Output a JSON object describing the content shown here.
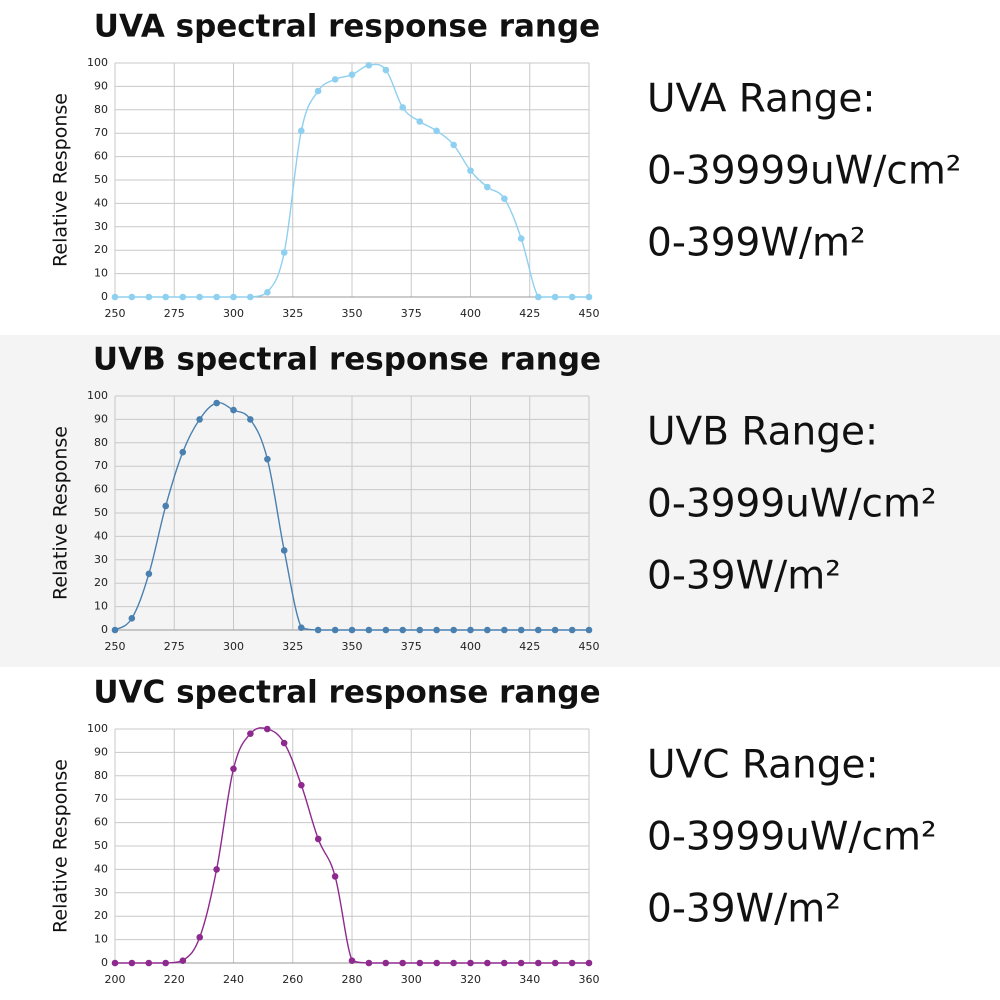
{
  "chart_data": [
    {
      "type": "line",
      "title": "UVA spectral response range",
      "y_label": "Relative Response",
      "color": "#8fd0f0",
      "grid": true,
      "x": [
        250,
        257.1,
        264.3,
        271.4,
        278.6,
        285.7,
        292.9,
        300,
        307.1,
        314.3,
        321.4,
        328.6,
        335.7,
        342.9,
        350,
        357.1,
        364.3,
        371.4,
        378.6,
        385.7,
        392.9,
        400,
        407.1,
        414.3,
        421.4,
        428.6,
        435.7,
        442.9,
        450
      ],
      "values": [
        0,
        0,
        0,
        0,
        0,
        0,
        0,
        0,
        0,
        2,
        19,
        71,
        88,
        93,
        95,
        99,
        97,
        81,
        75,
        71,
        65,
        54,
        47,
        42,
        25,
        0,
        0,
        0,
        0
      ],
      "xlim": [
        250,
        450
      ],
      "xticks": [
        250,
        275,
        300,
        325,
        350,
        375,
        400,
        425,
        450
      ],
      "ylim": [
        0,
        100
      ],
      "yticks": [
        0,
        10,
        20,
        30,
        40,
        50,
        60,
        70,
        80,
        90,
        100
      ],
      "annotations": [
        "UVA Range:",
        "0-39999uW/cm²",
        "0-399W/m²"
      ]
    },
    {
      "type": "line",
      "title": "UVB spectral response range",
      "y_label": "Relative Response",
      "color": "#4a80b0",
      "grid": true,
      "x": [
        250,
        257.1,
        264.3,
        271.4,
        278.6,
        285.7,
        292.9,
        300,
        307.1,
        314.3,
        321.4,
        328.6,
        335.7,
        342.9,
        350,
        357.1,
        364.3,
        371.4,
        378.6,
        385.7,
        392.9,
        400,
        407.1,
        414.3,
        421.4,
        428.6,
        435.7,
        442.9,
        450
      ],
      "values": [
        0,
        5,
        24,
        53,
        76,
        90,
        97,
        94,
        90,
        73,
        34,
        1,
        0,
        0,
        0,
        0,
        0,
        0,
        0,
        0,
        0,
        0,
        0,
        0,
        0,
        0,
        0,
        0,
        0
      ],
      "xlim": [
        250,
        450
      ],
      "xticks": [
        250,
        275,
        300,
        325,
        350,
        375,
        400,
        425,
        450
      ],
      "ylim": [
        0,
        100
      ],
      "yticks": [
        0,
        10,
        20,
        30,
        40,
        50,
        60,
        70,
        80,
        90,
        100
      ],
      "annotations": [
        "UVB Range:",
        "0-3999uW/cm²",
        "0-39W/m²"
      ]
    },
    {
      "type": "line",
      "title": "UVC spectral response range",
      "y_label": "Relative Response",
      "color": "#8e2a8e",
      "grid": true,
      "x": [
        200,
        205.7,
        211.4,
        217.1,
        222.9,
        228.6,
        234.3,
        240,
        245.7,
        251.4,
        257.1,
        262.9,
        268.6,
        274.3,
        280,
        285.7,
        291.4,
        297.1,
        302.9,
        308.6,
        314.3,
        320,
        325.7,
        331.4,
        337.1,
        342.9,
        348.6,
        354.3,
        360
      ],
      "values": [
        0,
        0,
        0,
        0,
        1,
        11,
        40,
        83,
        98,
        100,
        94,
        76,
        53,
        37,
        1,
        0,
        0,
        0,
        0,
        0,
        0,
        0,
        0,
        0,
        0,
        0,
        0,
        0,
        0
      ],
      "xlim": [
        200,
        360
      ],
      "xticks": [
        200,
        220,
        240,
        260,
        280,
        300,
        320,
        340,
        360
      ],
      "ylim": [
        0,
        100
      ],
      "yticks": [
        0,
        10,
        20,
        30,
        40,
        50,
        60,
        70,
        80,
        90,
        100
      ],
      "annotations": [
        "UVC Range:",
        "0-3999uW/cm²",
        "0-39W/m²"
      ]
    }
  ]
}
